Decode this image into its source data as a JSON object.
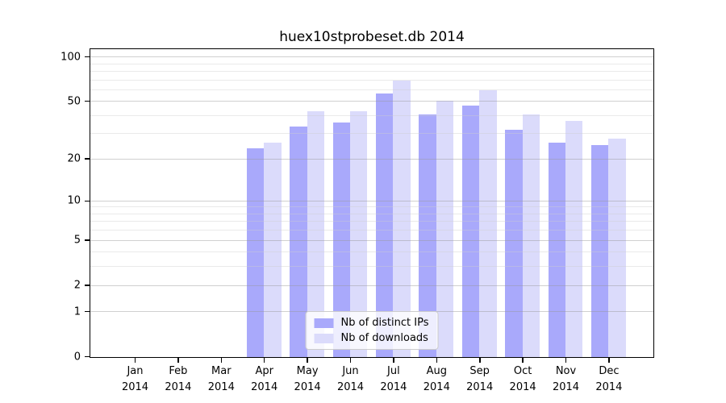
{
  "chart_data": {
    "type": "bar",
    "title": "huex10stprobeset.db 2014",
    "categories": [
      "Jan",
      "Feb",
      "Mar",
      "Apr",
      "May",
      "Jun",
      "Jul",
      "Aug",
      "Sep",
      "Oct",
      "Nov",
      "Dec"
    ],
    "category_year": "2014",
    "series": [
      {
        "name": "Nb of distinct IPs",
        "color": "#a9a9fb",
        "values": [
          0,
          0,
          0,
          24,
          34,
          36,
          57,
          41,
          47,
          32,
          26,
          25
        ]
      },
      {
        "name": "Nb of downloads",
        "color": "#dbdbfb",
        "values": [
          0,
          0,
          0,
          26,
          43,
          43,
          70,
          51,
          60,
          41,
          37,
          28
        ]
      }
    ],
    "xlabel": "",
    "ylabel": "",
    "y_scale": "log10(1+x)",
    "y_ticks": [
      0,
      1,
      2,
      5,
      10,
      20,
      50,
      100
    ],
    "y_minor_gridlines": [
      3,
      4,
      6,
      7,
      8,
      9,
      30,
      40,
      60,
      70,
      80,
      90
    ],
    "y_axis_top_value": 112,
    "ylim": [
      0,
      112
    ],
    "grid": "horizontal",
    "legend_position": "lower center",
    "colors": {
      "axis": "#000000",
      "major_gridline": "#c9c9c9",
      "minor_gridline": "#ebebeb",
      "background": "#ffffff"
    }
  }
}
